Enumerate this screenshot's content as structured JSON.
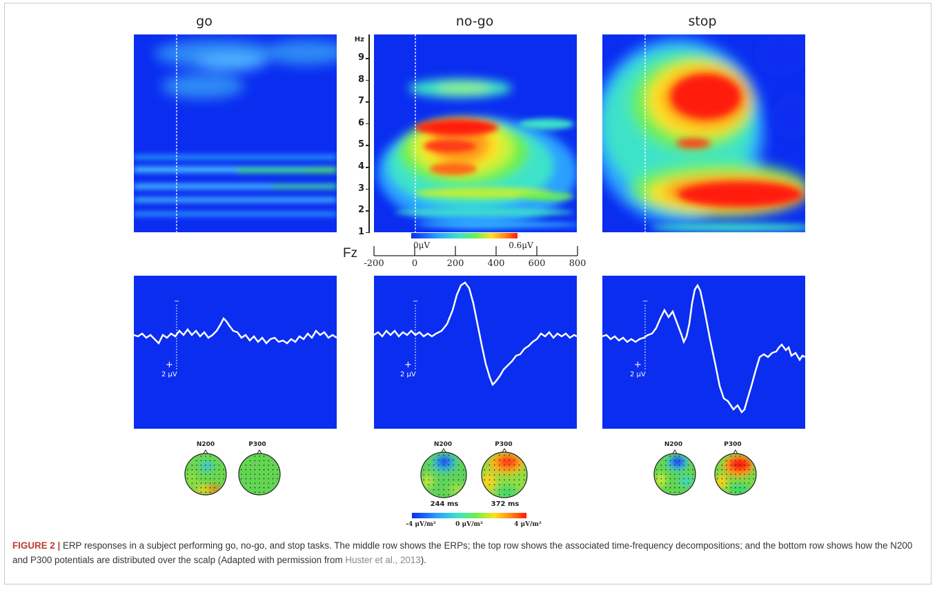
{
  "panels": {
    "go": {
      "title": "go"
    },
    "nogo": {
      "title": "no-go"
    },
    "stop": {
      "title": "stop"
    }
  },
  "tf_axis": {
    "unit_label": "Hz",
    "ticks": [
      "9",
      "8",
      "7",
      "6",
      "5",
      "4",
      "3",
      "2",
      "1"
    ]
  },
  "colorbar_tf": {
    "min_label": "0μV",
    "max_label": "0.6μV"
  },
  "time_axis": {
    "channel_label": "Fz",
    "ticks": [
      "-200",
      "0",
      "200",
      "400",
      "600",
      "800"
    ]
  },
  "erp_scale": {
    "minus": "−",
    "plus": "+",
    "amp_label": "2 μV"
  },
  "topo": {
    "n200_label": "N200",
    "p300_label": "P300",
    "nogo_n200_time": "244 ms",
    "nogo_p300_time": "372 ms"
  },
  "colorbar_topo": {
    "min_label": "-4 μV/m²",
    "mid_label": "0 μV/m²",
    "max_label": "4 μV/m²"
  },
  "caption": {
    "label": "FIGURE 2 |",
    "text": " ERP responses in a subject performing go, no-go, and stop tasks. The middle row shows the ERPs; the top row shows the associated time-frequency decompositions; and the bottom row shows how the N200 and P300 potentials are distributed over the scalp (Adapted with permission from ",
    "ref": "Huster et al., 2013",
    "end": ")."
  },
  "colors": {
    "background_blue": "#0a2df0",
    "trace": "#ffffff",
    "caption_label": "#c0392b"
  }
}
